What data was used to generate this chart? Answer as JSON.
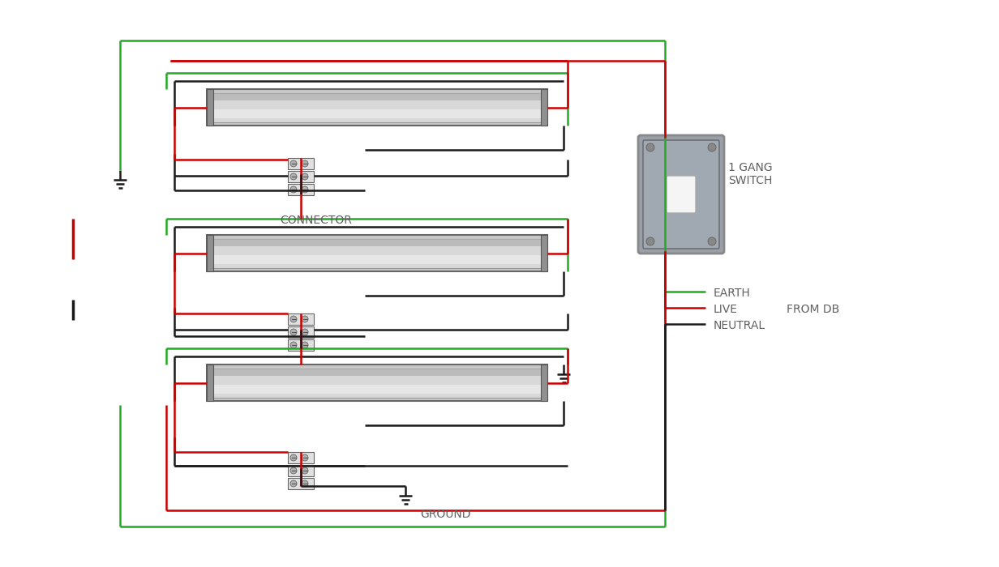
{
  "bg_color": "#ffffff",
  "text_color": "#606060",
  "red": "#cc0000",
  "green": "#22aa22",
  "black": "#1a1a1a",
  "lw": 1.8,
  "lw_outer": 1.5,
  "connector_text": "CONNECTOR",
  "switch_label": "1 GANG\nSWITCH",
  "from_db_label": "FROM DB",
  "earth_label": "EARTH",
  "live_label": "LIVE",
  "neutral_label": "NEUTRAL",
  "ground_label": "GROUND",
  "fig_w": 12.32,
  "fig_h": 7.0
}
